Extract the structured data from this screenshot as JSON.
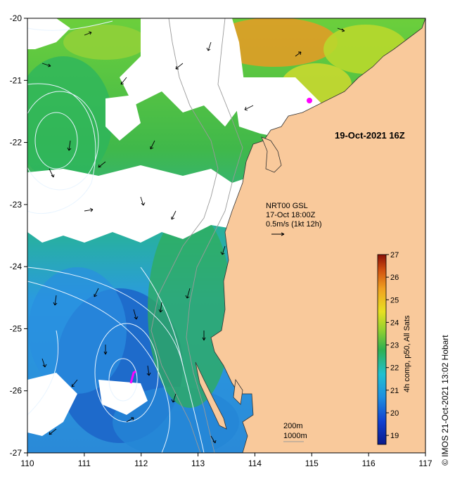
{
  "map": {
    "date_stamp": "19-Oct-2021 16Z",
    "lon_ticks": [
      "110",
      "111",
      "112",
      "113",
      "114",
      "115",
      "116",
      "117"
    ],
    "lat_ticks": [
      "-20",
      "-21",
      "-22",
      "-23",
      "-24",
      "-25",
      "-26",
      "-27"
    ],
    "lon_range": [
      110,
      117
    ],
    "lat_range": [
      -27,
      -20
    ],
    "currents": {
      "source": "NRT00 GSL",
      "time": "17-Oct 18:00Z",
      "scale": "0.5m/s (1kt 12h)"
    },
    "isobaths": [
      "200m",
      "1000m"
    ],
    "colorbar": {
      "label": "4h comp, p50, All Sats",
      "ticks": [
        "19",
        "20",
        "21",
        "22",
        "23",
        "24",
        "25",
        "26",
        "27"
      ],
      "range": [
        18.6,
        27
      ]
    },
    "credit": "© IMOS 21-Oct-2021 13:02 Hobart",
    "colors": {
      "land": "#f9c99b",
      "cold": "#1a5fc9",
      "mid": "#2fb35a",
      "warm": "#f0a020"
    }
  }
}
